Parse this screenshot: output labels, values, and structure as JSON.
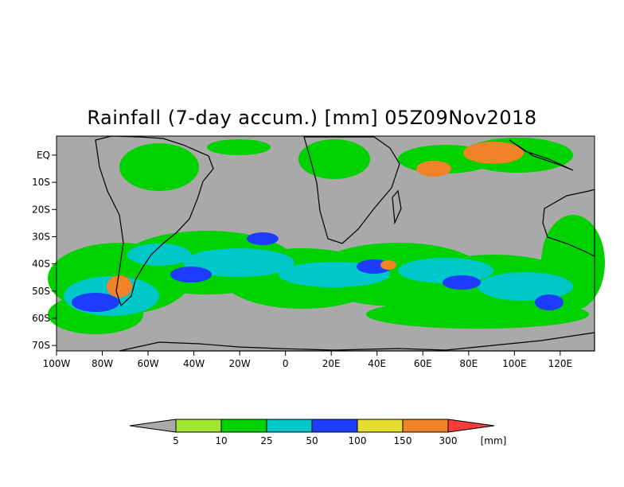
{
  "title": "Rainfall (7-day accum.) [mm] 05Z09Nov2018",
  "map": {
    "y_ticks": [
      "EQ",
      "10S",
      "20S",
      "30S",
      "40S",
      "50S",
      "60S",
      "70S"
    ],
    "x_ticks": [
      "100W",
      "80W",
      "60W",
      "40W",
      "20W",
      "0",
      "20E",
      "40E",
      "60E",
      "80E",
      "100E",
      "120E"
    ],
    "lon_range": [
      -100,
      135
    ],
    "lat_range": [
      -72,
      7
    ],
    "background_color": "#a9a9a9",
    "coastline_color": "#000000"
  },
  "colorbar": {
    "labels": [
      "5",
      "10",
      "25",
      "50",
      "100",
      "150",
      "300"
    ],
    "unit": "[mm]",
    "below_color": "#a9a9a9",
    "colors": [
      "#a0e632",
      "#00d200",
      "#00c8c8",
      "#1e3cff",
      "#e6dc32",
      "#f08228",
      "#fa3c3c"
    ]
  }
}
